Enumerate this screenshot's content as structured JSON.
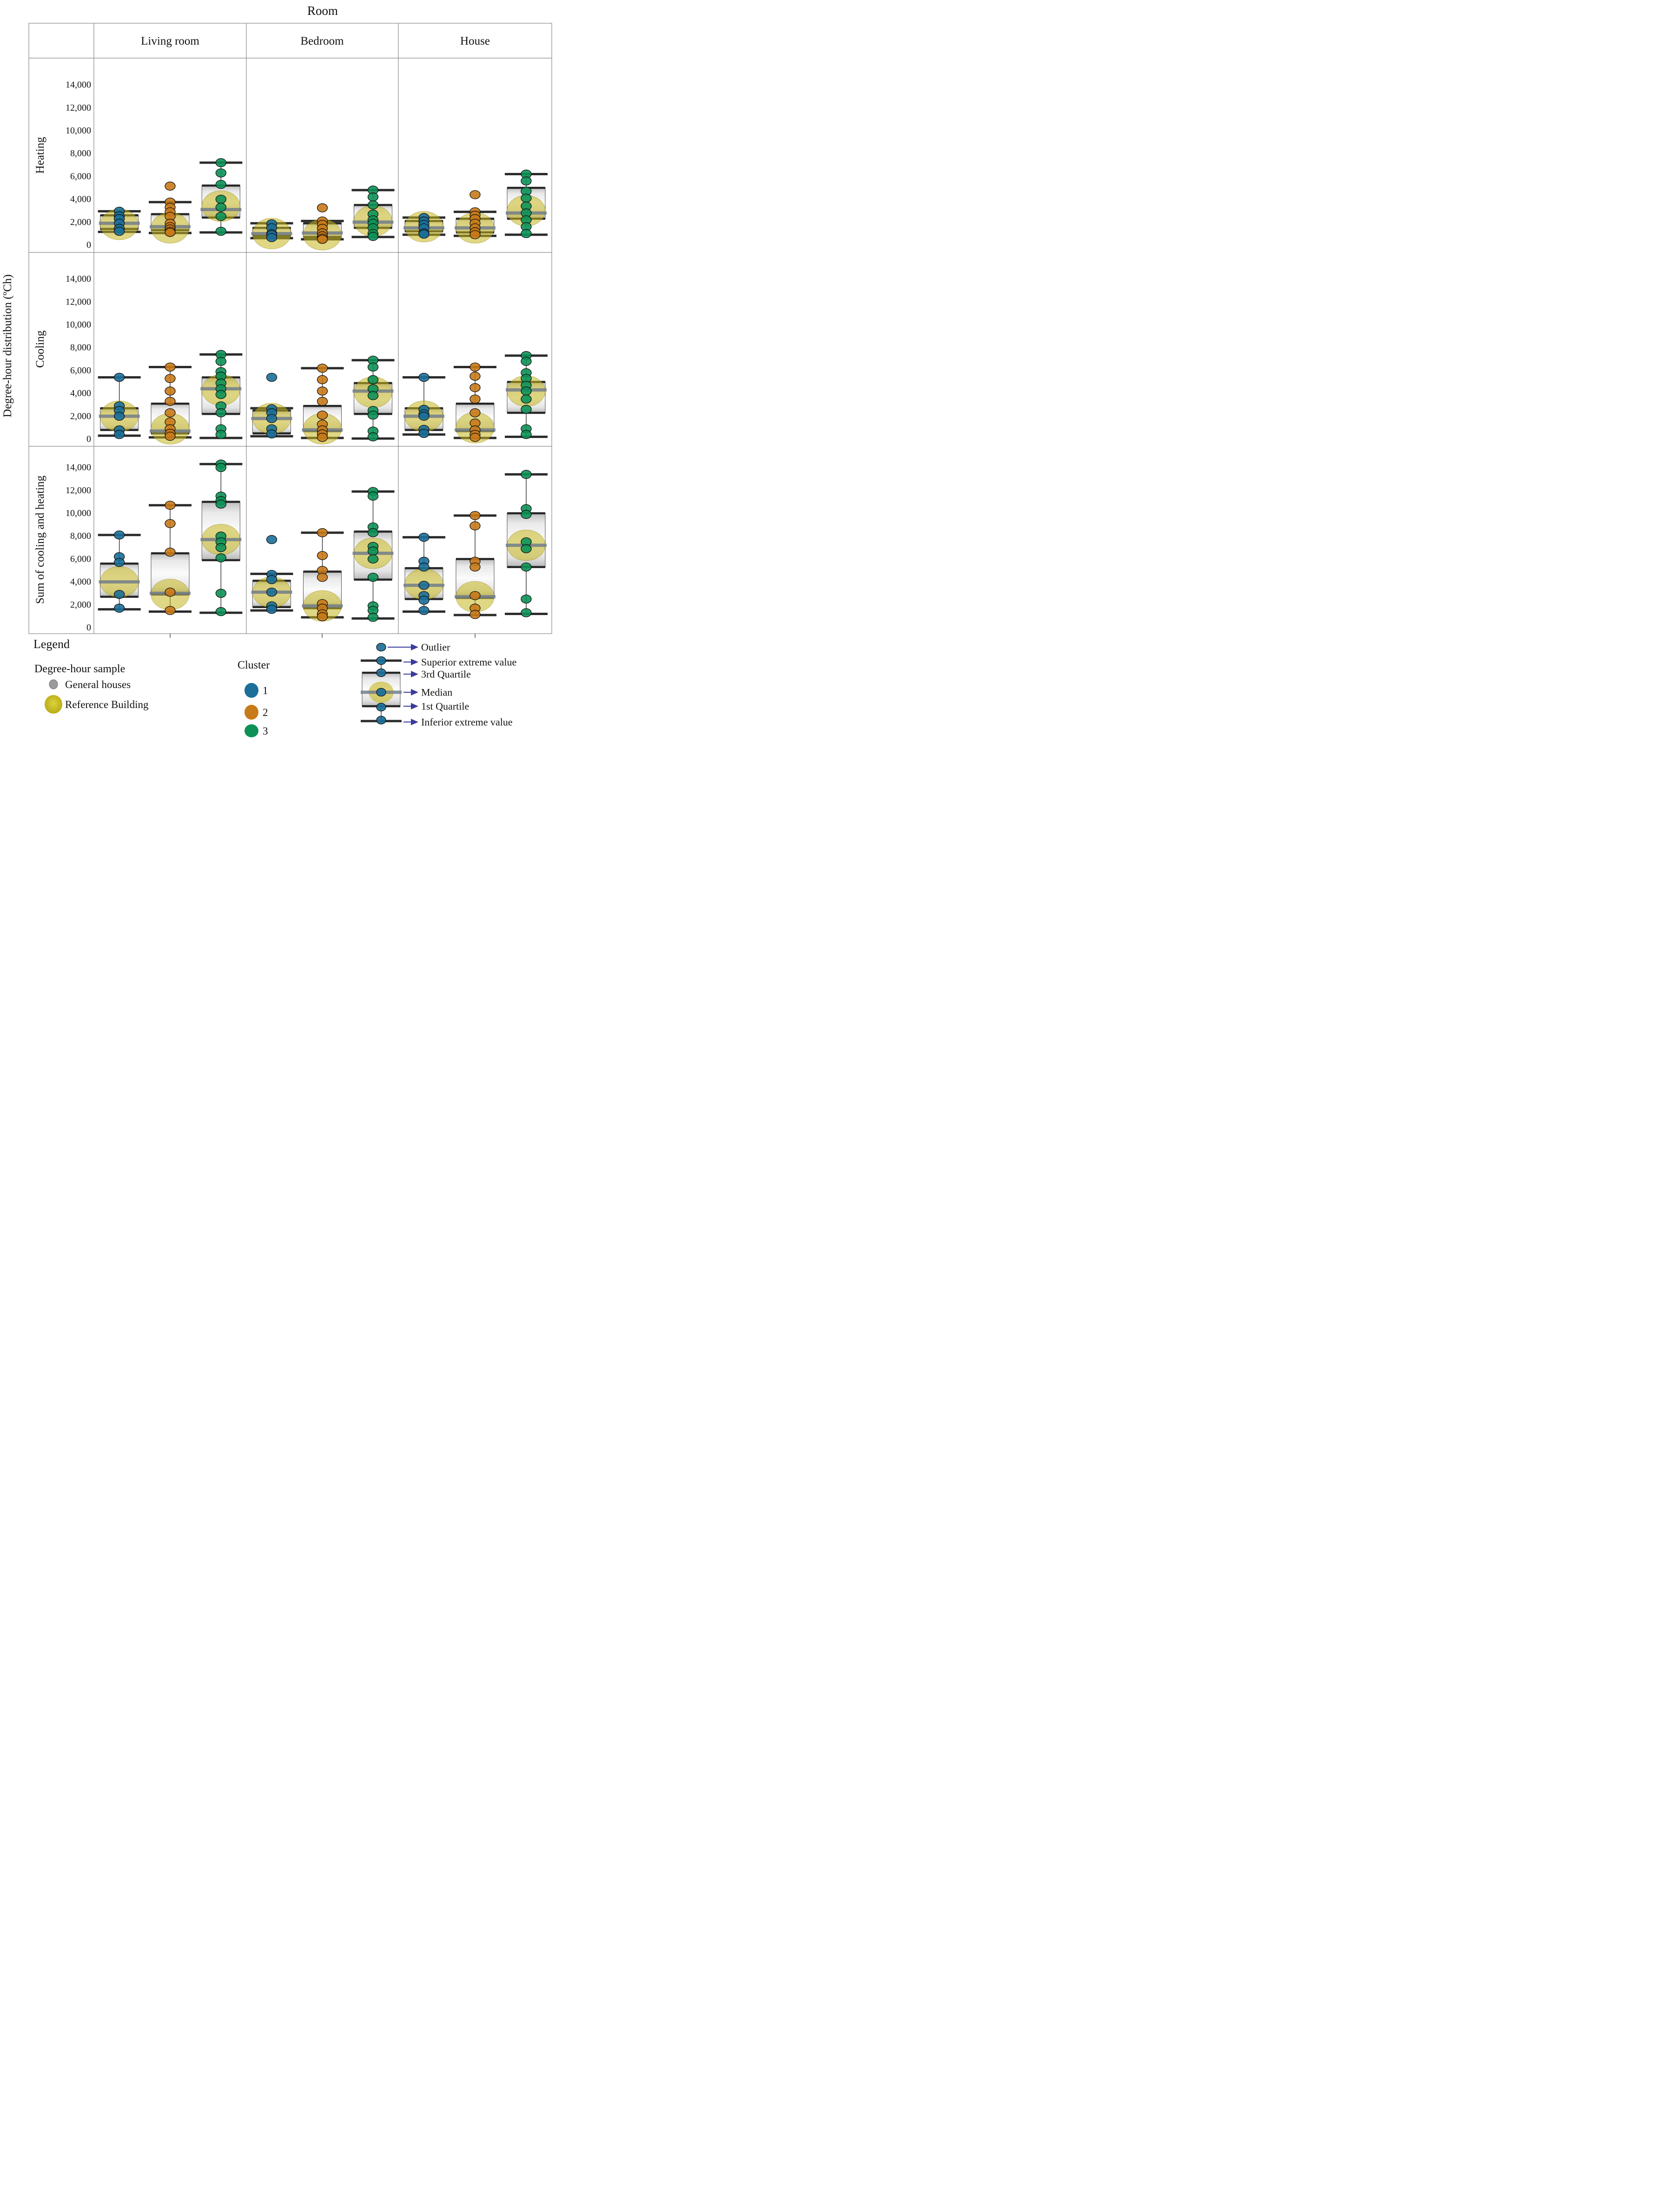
{
  "title": "Room",
  "ylabel": "Degree-hour distribution (ºCh)",
  "columns": [
    "Living room",
    "Bedroom",
    "House"
  ],
  "rows": [
    "Heating",
    "Cooling",
    "Sum of cooling and heating"
  ],
  "ytick_labels": [
    "0",
    "2,000",
    "4,000",
    "6,000",
    "8,000",
    "10,000",
    "12,000",
    "14,000"
  ],
  "colors": {
    "cluster1": "#1b6f99",
    "cluster2": "#c87a19",
    "cluster3": "#0d9157",
    "reference": "#c6b71f",
    "general_houses": "#9a9a9a",
    "box_border": "#4f4f4f",
    "box_dark_bar": "#262626",
    "median_bar": "#6e7a8a",
    "whisker": "#2f2f2f",
    "grid_line": "#8a8a8a",
    "arrow": "#3a3a9e"
  },
  "legend": {
    "heading": "Legend",
    "sample_title": "Degree-hour sample",
    "sample_items": [
      {
        "label": "General houses",
        "color": "#9a9a9a",
        "size": "small"
      },
      {
        "label": "Reference Building",
        "color": "#c6b71f",
        "size": "large"
      }
    ],
    "cluster_title": "Cluster",
    "cluster_items": [
      {
        "label": "1",
        "color": "#1b6f99"
      },
      {
        "label": "2",
        "color": "#c87a19"
      },
      {
        "label": "3",
        "color": "#0d9157"
      }
    ],
    "boxplot_key": [
      "Outlier",
      "Superior extreme value",
      "3rd Quartile",
      "Median",
      "1st Quartile",
      "Inferior extreme value"
    ]
  },
  "chart_data": {
    "type": "boxplot",
    "title": "Room",
    "xlabel": "Room",
    "ylabel": "Degree-hour distribution (ºCh)",
    "value_axis": {
      "min": 0,
      "max": 14000,
      "ticks": [
        0,
        2000,
        4000,
        6000,
        8000,
        10000,
        12000,
        14000
      ]
    },
    "rows": [
      "Heating",
      "Cooling",
      "Sum of cooling and heating"
    ],
    "columns": [
      "Living room",
      "Bedroom",
      "House"
    ],
    "clusters": [
      "1",
      "2",
      "3"
    ],
    "panels": [
      {
        "row": "Heating",
        "column": "Living room",
        "boxes": [
          {
            "cluster": "1",
            "whisker_low": 1150,
            "q1": 1400,
            "median": 1900,
            "q3": 2600,
            "whisker_high": 2950,
            "outliers": [],
            "points": [
              2950,
              2550,
              2300,
              1900,
              1450,
              1200
            ],
            "reference": 1800
          },
          {
            "cluster": "2",
            "whisker_low": 1050,
            "q1": 1300,
            "median": 1600,
            "q3": 2700,
            "whisker_high": 3750,
            "outliers": [
              5150
            ],
            "points": [
              3750,
              3300,
              2900,
              2500,
              1900,
              1600,
              1400,
              1200,
              1100
            ],
            "reference": 1500
          },
          {
            "cluster": "3",
            "whisker_low": 1100,
            "q1": 2400,
            "median": 3100,
            "q3": 5200,
            "whisker_high": 7200,
            "outliers": [],
            "points": [
              7200,
              6300,
              5300,
              4000,
              3300,
              2500,
              1200
            ],
            "reference": 3400
          }
        ]
      },
      {
        "row": "Heating",
        "column": "Bedroom",
        "boxes": [
          {
            "cluster": "1",
            "whisker_low": 600,
            "q1": 800,
            "median": 1000,
            "q3": 1500,
            "whisker_high": 1900,
            "outliers": [],
            "points": [
              1850,
              1500,
              1000,
              900,
              650
            ],
            "reference": 1000
          },
          {
            "cluster": "2",
            "whisker_low": 500,
            "q1": 700,
            "median": 1050,
            "q3": 1900,
            "whisker_high": 2100,
            "outliers": [
              3250
            ],
            "points": [
              2100,
              1800,
              1450,
              1050,
              800,
              600,
              500
            ],
            "reference": 900
          },
          {
            "cluster": "3",
            "whisker_low": 700,
            "q1": 1500,
            "median": 2000,
            "q3": 3500,
            "whisker_high": 4800,
            "outliers": [],
            "points": [
              4800,
              4200,
              3500,
              2700,
              2200,
              1900,
              1500,
              1000,
              750
            ],
            "reference": 2100
          }
        ]
      },
      {
        "row": "Heating",
        "column": "House",
        "boxes": [
          {
            "cluster": "1",
            "whisker_low": 900,
            "q1": 1200,
            "median": 1500,
            "q3": 2100,
            "whisker_high": 2400,
            "outliers": [],
            "points": [
              2400,
              2100,
              1800,
              1500,
              1050,
              950
            ],
            "reference": 1600
          },
          {
            "cluster": "2",
            "whisker_low": 800,
            "q1": 1100,
            "median": 1500,
            "q3": 2300,
            "whisker_high": 2900,
            "outliers": [
              4400
            ],
            "points": [
              2900,
              2600,
              2300,
              1900,
              1500,
              1150,
              900
            ],
            "reference": 1500
          },
          {
            "cluster": "3",
            "whisker_low": 900,
            "q1": 2300,
            "median": 2800,
            "q3": 5000,
            "whisker_high": 6200,
            "outliers": [],
            "points": [
              6200,
              5600,
              4700,
              4100,
              3400,
              2800,
              2200,
              1600,
              1000
            ],
            "reference": 3000
          }
        ]
      },
      {
        "row": "Cooling",
        "column": "Living room",
        "boxes": [
          {
            "cluster": "1",
            "whisker_low": 300,
            "q1": 800,
            "median": 2000,
            "q3": 2700,
            "whisker_high": 5400,
            "outliers": [],
            "points": [
              5400,
              2900,
              2500,
              2000,
              800,
              400
            ],
            "reference": 2000
          },
          {
            "cluster": "2",
            "whisker_low": 150,
            "q1": 500,
            "median": 700,
            "q3": 3100,
            "whisker_high": 6300,
            "outliers": [],
            "points": [
              6300,
              5300,
              4200,
              3300,
              2300,
              1500,
              900,
              500,
              250
            ],
            "reference": 900
          },
          {
            "cluster": "3",
            "whisker_low": 100,
            "q1": 2200,
            "median": 4400,
            "q3": 5400,
            "whisker_high": 7400,
            "outliers": [],
            "points": [
              7400,
              6800,
              5900,
              5500,
              4900,
              4400,
              3900,
              2900,
              2300,
              900,
              400
            ],
            "reference": 4300
          }
        ]
      },
      {
        "row": "Cooling",
        "column": "Bedroom",
        "boxes": [
          {
            "cluster": "1",
            "whisker_low": 250,
            "q1": 500,
            "median": 1800,
            "q3": 2500,
            "whisker_high": 2700,
            "outliers": [
              5400
            ],
            "points": [
              2650,
              2300,
              1800,
              900,
              450
            ],
            "reference": 1800
          },
          {
            "cluster": "2",
            "whisker_low": 100,
            "q1": 700,
            "median": 800,
            "q3": 2900,
            "whisker_high": 6200,
            "outliers": [],
            "points": [
              6200,
              5200,
              4200,
              3300,
              2100,
              1300,
              800,
              450,
              150
            ],
            "reference": 900
          },
          {
            "cluster": "3",
            "whisker_low": 50,
            "q1": 2200,
            "median": 4200,
            "q3": 4900,
            "whisker_high": 6900,
            "outliers": [],
            "points": [
              6900,
              6300,
              5200,
              4400,
              3800,
              2500,
              2100,
              700,
              200
            ],
            "reference": 4100
          }
        ]
      },
      {
        "row": "Cooling",
        "column": "House",
        "boxes": [
          {
            "cluster": "1",
            "whisker_low": 400,
            "q1": 800,
            "median": 2000,
            "q3": 2700,
            "whisker_high": 5400,
            "outliers": [],
            "points": [
              5400,
              2600,
              2200,
              2000,
              850,
              500
            ],
            "reference": 2000
          },
          {
            "cluster": "2",
            "whisker_low": 100,
            "q1": 700,
            "median": 800,
            "q3": 3100,
            "whisker_high": 6300,
            "outliers": [],
            "points": [
              6300,
              5500,
              4500,
              3500,
              2300,
              1400,
              800,
              400,
              150
            ],
            "reference": 1000
          },
          {
            "cluster": "3",
            "whisker_low": 200,
            "q1": 2300,
            "median": 4300,
            "q3": 5000,
            "whisker_high": 7300,
            "outliers": [],
            "points": [
              7300,
              6800,
              5800,
              5300,
              4700,
              4200,
              3500,
              2600,
              900,
              400
            ],
            "reference": 4200
          }
        ]
      },
      {
        "row": "Sum of cooling and heating",
        "column": "Living room",
        "boxes": [
          {
            "cluster": "1",
            "whisker_low": 1600,
            "q1": 2700,
            "median": 4000,
            "q3": 5600,
            "whisker_high": 8100,
            "outliers": [],
            "points": [
              8100,
              6200,
              5700,
              2900,
              1700
            ],
            "reference": 4000
          },
          {
            "cluster": "2",
            "whisker_low": 1400,
            "q1": 2900,
            "median": 3000,
            "q3": 6500,
            "whisker_high": 10700,
            "outliers": [],
            "points": [
              10700,
              9100,
              6600,
              3100,
              1500
            ],
            "reference": 2900
          },
          {
            "cluster": "3",
            "whisker_low": 1300,
            "q1": 5900,
            "median": 7700,
            "q3": 11000,
            "whisker_high": 14300,
            "outliers": [],
            "points": [
              14300,
              14000,
              11500,
              11100,
              10800,
              8000,
              7500,
              7000,
              6100,
              3000,
              1400
            ],
            "reference": 7700
          }
        ]
      },
      {
        "row": "Sum of cooling and heating",
        "column": "Bedroom",
        "boxes": [
          {
            "cluster": "1",
            "whisker_low": 1500,
            "q1": 1800,
            "median": 3100,
            "q3": 4100,
            "whisker_high": 4700,
            "outliers": [
              7700
            ],
            "points": [
              4650,
              4200,
              3100,
              1900,
              1600
            ],
            "reference": 3100
          },
          {
            "cluster": "2",
            "whisker_low": 900,
            "q1": 1700,
            "median": 1900,
            "q3": 4900,
            "whisker_high": 8300,
            "outliers": [],
            "points": [
              8300,
              6300,
              5000,
              4400,
              2100,
              1700,
              1200,
              950
            ],
            "reference": 1900
          },
          {
            "cluster": "3",
            "whisker_low": 800,
            "q1": 4200,
            "median": 6500,
            "q3": 8400,
            "whisker_high": 11900,
            "outliers": [],
            "points": [
              11900,
              11500,
              8800,
              8300,
              7100,
              6700,
              6000,
              4400,
              1900,
              1500,
              900
            ],
            "reference": 6500
          }
        ]
      },
      {
        "row": "Sum of cooling and heating",
        "column": "House",
        "boxes": [
          {
            "cluster": "1",
            "whisker_low": 1400,
            "q1": 2500,
            "median": 3700,
            "q3": 5200,
            "whisker_high": 7900,
            "outliers": [],
            "points": [
              7900,
              5800,
              5300,
              3700,
              2800,
              2400,
              1500
            ],
            "reference": 3800
          },
          {
            "cluster": "2",
            "whisker_low": 1100,
            "q1": 2600,
            "median": 2700,
            "q3": 6000,
            "whisker_high": 9800,
            "outliers": [],
            "points": [
              9800,
              8900,
              5800,
              5300,
              2800,
              1700,
              1150
            ],
            "reference": 2700
          },
          {
            "cluster": "3",
            "whisker_low": 1200,
            "q1": 5300,
            "median": 7200,
            "q3": 10000,
            "whisker_high": 13400,
            "outliers": [],
            "points": [
              13400,
              10400,
              9900,
              7500,
              6900,
              5300,
              2500,
              1300
            ],
            "reference": 7200
          }
        ]
      }
    ]
  }
}
